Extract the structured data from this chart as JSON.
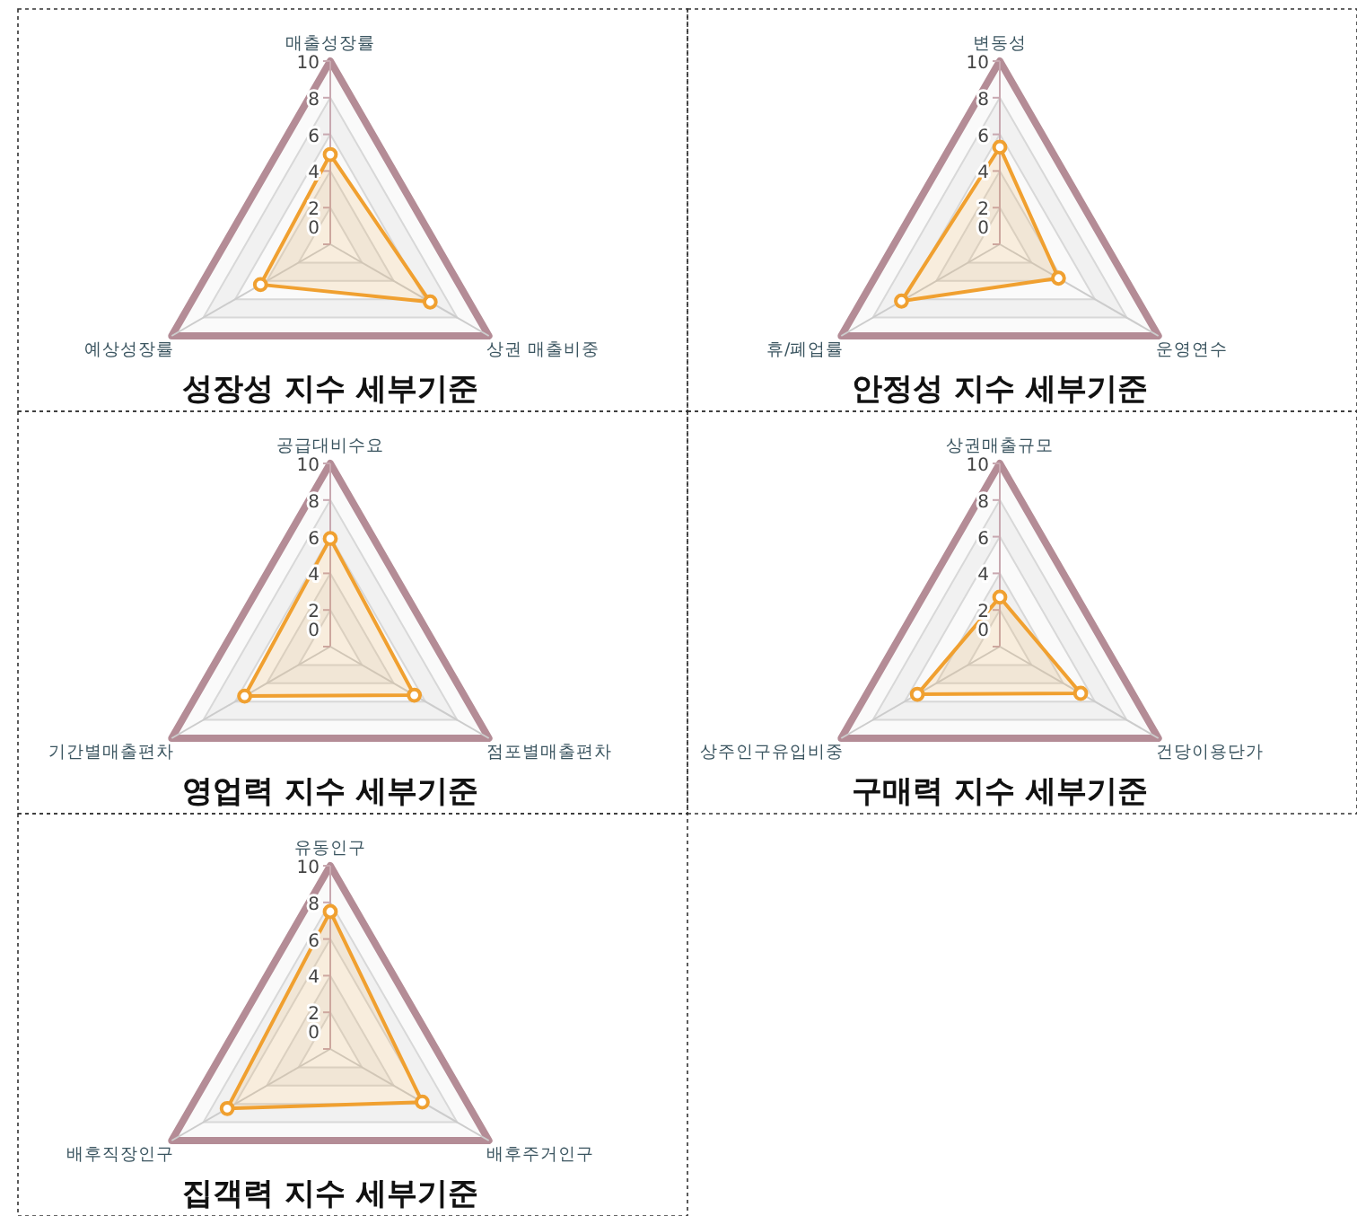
{
  "chart_data": [
    {
      "type": "radar",
      "title": "성장성 지수 세부기준",
      "categories": [
        "매출성장률",
        "상권 매출비중",
        "예상성장률"
      ],
      "series": [
        {
          "color": "#f0a030",
          "values": [
            4.9,
            6.3,
            4.4
          ]
        }
      ],
      "ylim": [
        0,
        10
      ],
      "yticks": [
        0,
        2,
        4,
        6,
        8,
        10
      ],
      "grid": true,
      "marker": "circle"
    },
    {
      "type": "radar",
      "title": "안정성 지수 세부기준",
      "categories": [
        "변동성",
        "운영연수",
        "휴/폐업률"
      ],
      "series": [
        {
          "color": "#f0a030",
          "values": [
            5.3,
            3.7,
            6.2
          ]
        }
      ],
      "ylim": [
        0,
        10
      ],
      "yticks": [
        0,
        2,
        4,
        6,
        8,
        10
      ],
      "grid": true,
      "marker": "circle"
    },
    {
      "type": "radar",
      "title": "영업력 지수 세부기준",
      "categories": [
        "공급대비수요",
        "점포별매출편차",
        "기간별매출편차"
      ],
      "series": [
        {
          "color": "#f0a030",
          "values": [
            5.9,
            5.3,
            5.4
          ]
        }
      ],
      "ylim": [
        0,
        10
      ],
      "yticks": [
        0,
        2,
        4,
        6,
        8,
        10
      ],
      "grid": true,
      "marker": "circle"
    },
    {
      "type": "radar",
      "title": "구매력 지수 세부기준",
      "categories": [
        "상권매출규모",
        "건당이용단가",
        "상주인구유입비중"
      ],
      "series": [
        {
          "color": "#f0a030",
          "values": [
            2.7,
            5.1,
            5.2
          ]
        }
      ],
      "ylim": [
        0,
        10
      ],
      "yticks": [
        0,
        2,
        4,
        6,
        8,
        10
      ],
      "grid": true,
      "marker": "circle"
    },
    {
      "type": "radar",
      "title": "집객력 지수 세부기준",
      "categories": [
        "유동인구",
        "배후주거인구",
        "배후직장인구"
      ],
      "series": [
        {
          "color": "#f0a030",
          "values": [
            7.5,
            5.8,
            6.5
          ]
        }
      ],
      "ylim": [
        0,
        10
      ],
      "yticks": [
        0,
        2,
        4,
        6,
        8,
        10
      ],
      "grid": true,
      "marker": "circle"
    }
  ]
}
